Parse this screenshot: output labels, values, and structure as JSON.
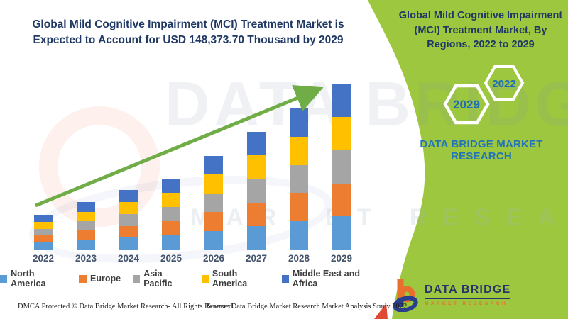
{
  "page_title": "Global Mild Cognitive Impairment (MCI) Treatment Market infographic",
  "colors": {
    "panel_green": "#9DC73E",
    "arrow_green": "#70AD47",
    "title_navy": "#1F3864",
    "brand_blue": "#2273B8",
    "hex_text_blue": "#1F6DB2",
    "logo_navy": "#28336B",
    "logo_orange": "#E8702E",
    "red_sliver": "#E04A33",
    "axis_gray": "#D9D9D9"
  },
  "chart_title": "Global Mild Cognitive Impairment (MCI) Treatment Market is Expected to Account for USD 148,373.70 Thousand by 2029",
  "chart_data": {
    "type": "bar",
    "stacked": true,
    "title": "Global Mild Cognitive Impairment (MCI) Treatment Market is Expected to Account for USD 148,373.70 Thousand by 2029",
    "units": "USD Thousand (values estimated from bar heights; 2029 total labeled in title)",
    "categories": [
      "2022",
      "2023",
      "2024",
      "2025",
      "2026",
      "2027",
      "2028",
      "2029"
    ],
    "series": [
      {
        "name": "North America",
        "color": "#5B9BD5",
        "values": [
          6200,
          8480,
          10640,
          12720,
          16820,
          21100,
          25300,
          29674.7
        ]
      },
      {
        "name": "Europe",
        "color": "#ED7D31",
        "values": [
          6200,
          8480,
          10640,
          12720,
          16820,
          21100,
          25300,
          29674.7
        ]
      },
      {
        "name": "Asia Pacific",
        "color": "#A5A5A5",
        "values": [
          6200,
          8480,
          10640,
          12720,
          16820,
          21100,
          25300,
          29674.7
        ]
      },
      {
        "name": "South America",
        "color": "#FFC000",
        "values": [
          6200,
          8480,
          10640,
          12720,
          16820,
          21100,
          25300,
          29674.7
        ]
      },
      {
        "name": "Middle East and Africa",
        "color": "#4472C4",
        "values": [
          6200,
          8480,
          10640,
          12720,
          16820,
          21100,
          25300,
          29674.7
        ]
      }
    ],
    "totals": [
      31000,
      42400,
      53200,
      63600,
      84100,
      105500,
      126500,
      148373.7
    ],
    "ylim": [
      0,
      160000
    ],
    "grid": false,
    "legend_position": "bottom",
    "trend_arrow": {
      "present": true,
      "from_year": "2022",
      "to_year": "2029",
      "color": "#70AD47"
    }
  },
  "sidebar": {
    "heading": "Global Mild Cognitive Impairment (MCI) Treatment Market, By Regions, 2022 to 2029",
    "hex_large_label": "2029",
    "hex_small_label": "2022",
    "brand_line1": "DATA BRIDGE MARKET",
    "brand_line2": "RESEARCH"
  },
  "logo": {
    "name": "DATA BRIDGE",
    "sub": "MARKET RESEARCH"
  },
  "footer": {
    "dmca": "DMCA Protected © Data Bridge Market Research- All Rights Reserved.",
    "source": "Source: Data Bridge Market Research Market Analysis Study 2022"
  },
  "watermark": {
    "line1": "DATA BRIDGE",
    "line2": "MARKET RESEARCH"
  }
}
